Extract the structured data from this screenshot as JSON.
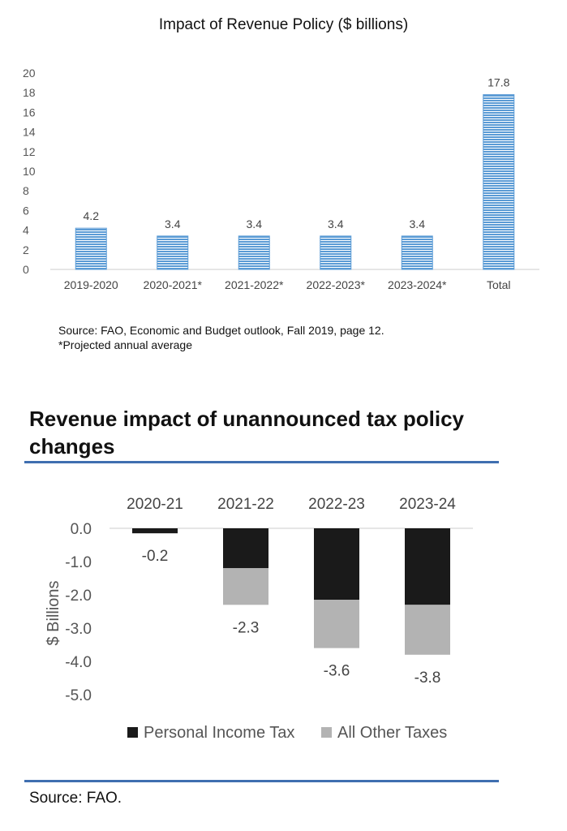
{
  "chart_data": [
    {
      "type": "bar",
      "title": "Impact of Revenue Policy ($ billions)",
      "categories": [
        "2019-2020",
        "2020-2021*",
        "2021-2022*",
        "2022-2023*",
        "2023-2024*",
        "Total"
      ],
      "values": [
        4.2,
        3.4,
        3.4,
        3.4,
        3.4,
        17.8
      ],
      "data_labels": [
        "4.2",
        "3.4",
        "3.4",
        "3.4",
        "3.4",
        "17.8"
      ],
      "ylim": [
        0,
        20
      ],
      "yticks": [
        "0",
        "2",
        "4",
        "6",
        "8",
        "10",
        "12",
        "14",
        "16",
        "18",
        "20"
      ],
      "xlabel": "",
      "ylabel": "",
      "grid": false,
      "legend": "none",
      "bar_color": "#5b9bd5",
      "notes": [
        "Source: FAO, Economic and Budget outlook, Fall 2019, page 12.",
        "*Projected annual average"
      ]
    },
    {
      "type": "bar",
      "stacked": true,
      "title": "Revenue impact of unannounced tax policy changes",
      "categories": [
        "2020-21",
        "2021-22",
        "2022-23",
        "2023-24"
      ],
      "series": [
        {
          "name": "Personal Income Tax",
          "color": "#1a1a1a",
          "values": [
            -0.15,
            -1.2,
            -2.15,
            -2.3
          ]
        },
        {
          "name": "All Other Taxes",
          "color": "#b3b3b3",
          "values": [
            0,
            -1.1,
            -1.45,
            -1.5
          ]
        }
      ],
      "totals": [
        "-0.2",
        "-2.3",
        "-3.6",
        "-3.8"
      ],
      "ylabel": "$ Billions",
      "xlabel": "",
      "ylim": [
        -5,
        0
      ],
      "yticks": [
        "0.0",
        "-1.0",
        "-2.0",
        "-3.0",
        "-4.0",
        "-5.0"
      ],
      "category_axis_position": "top",
      "grid": false,
      "legend": "bottom",
      "source": "Source: FAO."
    }
  ],
  "colors": {
    "rule": "#3f6fb0",
    "axis": "#cccccc"
  }
}
